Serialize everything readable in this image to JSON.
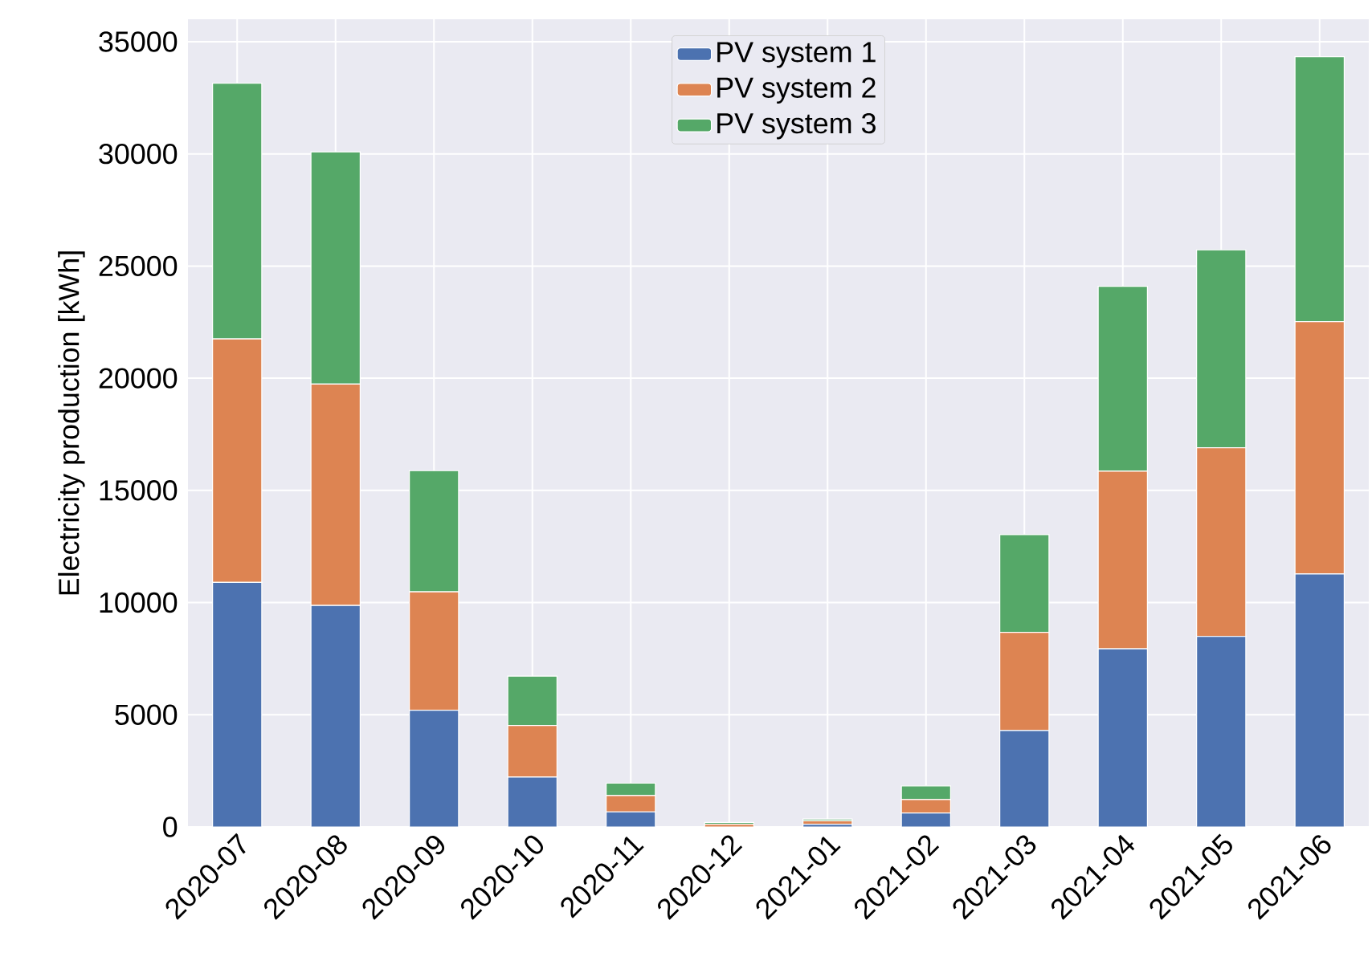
{
  "chart_data": {
    "type": "bar",
    "stacked": true,
    "ylabel": "Electricity production [kWh]",
    "categories": [
      "2020-07",
      "2020-08",
      "2020-09",
      "2020-10",
      "2020-11",
      "2020-12",
      "2021-01",
      "2021-02",
      "2021-03",
      "2021-04",
      "2021-05",
      "2021-06"
    ],
    "series": [
      {
        "name": "PV system 1",
        "color": "#4c72b0",
        "values": [
          10900,
          9870,
          5200,
          2220,
          670,
          null,
          120,
          620,
          4300,
          7940,
          8490,
          11280
        ]
      },
      {
        "name": "PV system 2",
        "color": "#dd8452",
        "values": [
          10850,
          9870,
          5280,
          2300,
          730,
          120,
          150,
          600,
          4370,
          7920,
          8410,
          11240
        ]
      },
      {
        "name": "PV system 3",
        "color": "#55a868",
        "values": [
          11400,
          10350,
          5400,
          2200,
          550,
          80,
          80,
          610,
          4360,
          8240,
          8820,
          11810
        ]
      }
    ],
    "ylim": [
      0,
      36000
    ],
    "yticks": [
      0,
      5000,
      10000,
      15000,
      20000,
      25000,
      30000,
      35000
    ],
    "grid": true,
    "legend": "top"
  }
}
